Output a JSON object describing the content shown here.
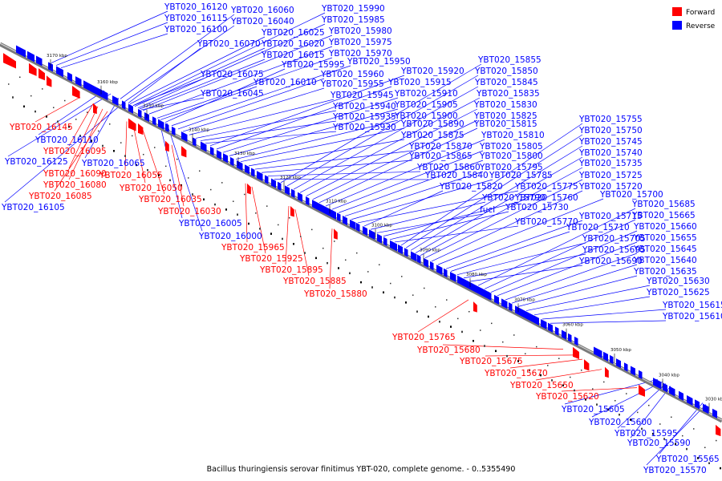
{
  "caption": "Bacillus thuringiensis serovar finitimus YBT-020, complete genome. - 0..5355490",
  "legend": [
    {
      "label": "Forward",
      "color": "#ff0000"
    },
    {
      "label": "Reverse",
      "color": "#0000ff"
    }
  ],
  "colors": {
    "forward": "#ff0000",
    "reverse": "#0000ff",
    "backbone": "#7a7a7a"
  },
  "ticks": [
    "3170 kbp",
    "3160 kbp",
    "3150 kbp",
    "3140 kbp",
    "3130 kbp",
    "3120 kbp",
    "3110 kbp",
    "3100 kbp",
    "3090 kbp",
    "3080 kbp",
    "3070 kbp",
    "3060 kbp",
    "3050 kbp",
    "3040 kbp",
    "3030 kbp"
  ],
  "reverse_labels": [
    "YBT020_16120",
    "YBT020_16115",
    "YBT020_16100",
    "YBT020_16060",
    "YBT020_16040",
    "YBT020_16025",
    "YBT020_16020",
    "YBT020_16015",
    "YBT020_16070",
    "YBT020_16075",
    "YBT020_16010",
    "YBT020_16045",
    "YBT020_15990",
    "YBT020_15985",
    "YBT020_15980",
    "YBT020_15975",
    "YBT020_15970",
    "YBT020_15995",
    "YBT020_15950",
    "YBT020_15960",
    "YBT020_15955",
    "YBT020_15945",
    "YBT020_15940",
    "YBT020_15935",
    "YBT020_15930",
    "YBT020_15920",
    "YBT020_15915",
    "YBT020_15910",
    "YBT020_15905",
    "YBT020_15900",
    "YBT020_15890",
    "YBT020_15875",
    "YBT020_15870",
    "YBT020_15865",
    "YBT020_15860",
    "YBT020_15840",
    "YBT020_15855",
    "YBT020_15850",
    "YBT020_15845",
    "YBT020_15835",
    "YBT020_15830",
    "YBT020_15825",
    "YBT020_15815",
    "YBT020_15810",
    "YBT020_15805",
    "YBT020_15800",
    "YBT020_15795",
    "YBT020_15785",
    "YBT020_15775",
    "YBT020_15820",
    "YBT020_15790",
    "fucI",
    "YBT020_15760",
    "YBT020_15730",
    "YBT020_15770",
    "YBT020_15755",
    "YBT020_15750",
    "YBT020_15745",
    "YBT020_15740",
    "YBT020_15735",
    "YBT020_15725",
    "YBT020_15720",
    "YBT020_15700",
    "YBT020_15715",
    "YBT020_15710",
    "YBT020_15705",
    "YBT020_15695",
    "YBT020_15690",
    "YBT020_15685",
    "YBT020_15665",
    "YBT020_15660",
    "YBT020_15655",
    "YBT020_15645",
    "YBT020_15640",
    "YBT020_15635",
    "YBT020_15630",
    "YBT020_15625",
    "YBT020_15615",
    "YBT020_15610",
    "YBT020_16110",
    "YBT020_16125",
    "YBT020_16065",
    "YBT020_16105",
    "YBT020_16005",
    "YBT020_16000",
    "YBT020_15605",
    "YBT020_15600",
    "YBT020_15595",
    "YBT020_15590",
    "YBT020_15565",
    "YBT020_15570"
  ],
  "forward_labels": [
    "YBT020_16145",
    "YBT020_16095",
    "YBT020_16090",
    "YBT020_16080",
    "YBT020_16085",
    "YBT020_16055",
    "YBT020_16050",
    "YBT020_16035",
    "YBT020_16030",
    "YBT020_15965",
    "YBT020_15925",
    "YBT020_15895",
    "YBT020_15885",
    "YBT020_15880",
    "YBT020_15765",
    "YBT020_15680",
    "YBT020_15675",
    "YBT020_15670",
    "YBT020_15650",
    "YBT020_15620"
  ]
}
